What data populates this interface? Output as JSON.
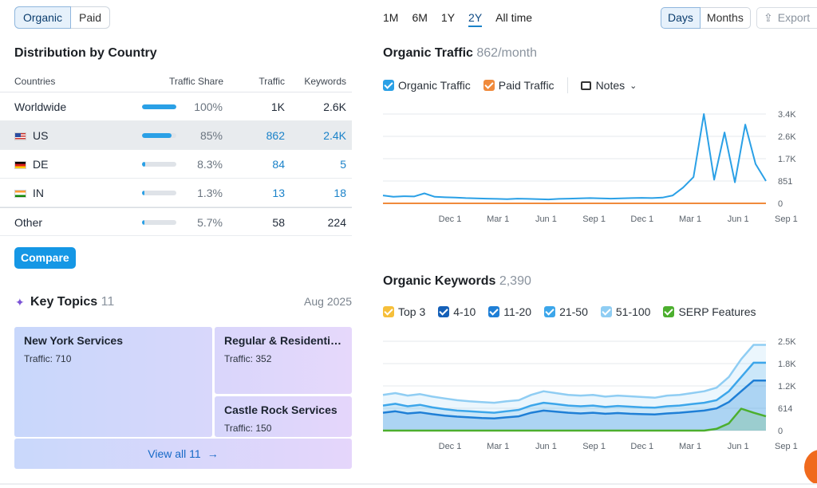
{
  "source_toggle": {
    "options": [
      "Organic",
      "Paid"
    ],
    "active": "Organic"
  },
  "distribution": {
    "title": "Distribution by Country",
    "headers": {
      "countries": "Countries",
      "share": "Traffic Share",
      "traffic": "Traffic",
      "keywords": "Keywords"
    },
    "rows": [
      {
        "name": "Worldwide",
        "share": "100%",
        "share_value": 1.0,
        "traffic": "1K",
        "keywords": "2.6K",
        "flag": "",
        "link": false
      },
      {
        "name": "US",
        "share": "85%",
        "share_value": 0.85,
        "traffic": "862",
        "keywords": "2.4K",
        "flag": "us",
        "link": true
      },
      {
        "name": "DE",
        "share": "8.3%",
        "share_value": 0.083,
        "traffic": "84",
        "keywords": "5",
        "flag": "de",
        "link": true
      },
      {
        "name": "IN",
        "share": "1.3%",
        "share_value": 0.013,
        "traffic": "13",
        "keywords": "18",
        "flag": "in",
        "link": true
      },
      {
        "name": "Other",
        "share": "5.7%",
        "share_value": 0.057,
        "traffic": "58",
        "keywords": "224",
        "flag": "",
        "link": false
      }
    ],
    "compare_label": "Compare"
  },
  "key_topics": {
    "title": "Key Topics",
    "count": "11",
    "date": "Aug 2025",
    "icon": "sparkle-icon",
    "tiles": [
      {
        "name": "New York Services",
        "traffic": "Traffic: 710"
      },
      {
        "name": "Regular & Residential Cleaning",
        "traffic": "Traffic: 352"
      },
      {
        "name": "Castle Rock Services",
        "traffic": "Traffic: 150"
      }
    ],
    "view_all": "View all 11"
  },
  "periods": {
    "options": [
      "1M",
      "6M",
      "1Y",
      "2Y",
      "All time"
    ],
    "active": "2Y"
  },
  "granularity": {
    "options": [
      "Days",
      "Months"
    ],
    "active": "Days"
  },
  "export_label": "Export",
  "organic_traffic": {
    "title": "Organic Traffic",
    "value": "862/month",
    "legend": [
      {
        "label": "Organic Traffic",
        "color": "#2aa0e6"
      },
      {
        "label": "Paid Traffic",
        "color": "#f08a3c"
      }
    ],
    "notes_label": "Notes"
  },
  "organic_keywords": {
    "title": "Organic Keywords",
    "value": "2,390",
    "legend": [
      {
        "label": "Top 3",
        "color": "#f6bf3a"
      },
      {
        "label": "4-10",
        "color": "#1560b8"
      },
      {
        "label": "11-20",
        "color": "#1f7fd6"
      },
      {
        "label": "21-50",
        "color": "#3ca6ea"
      },
      {
        "label": "51-100",
        "color": "#8fcdf3"
      },
      {
        "label": "SERP Features",
        "color": "#4caf2e"
      }
    ]
  },
  "chart_data": [
    {
      "type": "line",
      "title": "Organic Traffic",
      "x_ticks": [
        "Dec 1",
        "Mar 1",
        "Jun 1",
        "Sep 1",
        "Dec 1",
        "Mar 1",
        "Jun 1",
        "Sep 1"
      ],
      "y_ticks": [
        "3.4K",
        "2.6K",
        "1.7K",
        "851",
        "0"
      ],
      "ylim": [
        0,
        3400
      ],
      "series": [
        {
          "name": "Organic Traffic",
          "color": "#2aa0e6",
          "values": [
            300,
            250,
            270,
            260,
            380,
            250,
            230,
            220,
            200,
            190,
            180,
            170,
            160,
            180,
            170,
            160,
            150,
            170,
            180,
            190,
            200,
            190,
            180,
            190,
            200,
            210,
            200,
            220,
            300,
            600,
            1000,
            3400,
            900,
            2700,
            800,
            3000,
            1500,
            850
          ]
        },
        {
          "name": "Paid Traffic",
          "color": "#f08a3c",
          "values": [
            0,
            0,
            0,
            0,
            0,
            0,
            0,
            0,
            0,
            0,
            0,
            0,
            0,
            0,
            0,
            0,
            0,
            0,
            0,
            0,
            0,
            0,
            0,
            0,
            0,
            0,
            0,
            0,
            0,
            0,
            0,
            0,
            0,
            0,
            0,
            0,
            0,
            0
          ]
        }
      ]
    },
    {
      "type": "area",
      "title": "Organic Keywords",
      "x_ticks": [
        "Dec 1",
        "Mar 1",
        "Jun 1",
        "Sep 1",
        "Dec 1",
        "Mar 1",
        "Jun 1",
        "Sep 1"
      ],
      "y_ticks": [
        "2.5K",
        "1.8K",
        "1.2K",
        "614",
        "0"
      ],
      "ylim": [
        0,
        2500
      ],
      "series": [
        {
          "name": "51-100",
          "color": "#8fcdf3",
          "values": [
            1000,
            1050,
            980,
            1020,
            950,
            900,
            850,
            820,
            800,
            780,
            820,
            850,
            1000,
            1100,
            1050,
            1000,
            980,
            1000,
            950,
            980,
            960,
            940,
            920,
            980,
            1000,
            1050,
            1100,
            1200,
            1500,
            2000,
            2400,
            2400
          ]
        },
        {
          "name": "21-50",
          "color": "#3ca6ea",
          "values": [
            700,
            750,
            680,
            720,
            650,
            600,
            560,
            540,
            520,
            500,
            540,
            580,
            700,
            780,
            740,
            700,
            680,
            700,
            660,
            690,
            670,
            650,
            640,
            680,
            700,
            740,
            780,
            850,
            1100,
            1500,
            1900,
            1900
          ]
        },
        {
          "name": "11-20",
          "color": "#1f7fd6",
          "values": [
            500,
            540,
            480,
            510,
            460,
            420,
            390,
            370,
            350,
            340,
            370,
            400,
            500,
            560,
            530,
            500,
            480,
            500,
            470,
            490,
            470,
            460,
            450,
            480,
            500,
            530,
            560,
            620,
            800,
            1100,
            1400,
            1400
          ]
        },
        {
          "name": "SERP Features",
          "color": "#4caf2e",
          "values": [
            0,
            0,
            0,
            0,
            0,
            0,
            0,
            0,
            0,
            0,
            0,
            0,
            0,
            0,
            0,
            0,
            0,
            0,
            0,
            0,
            0,
            0,
            0,
            0,
            0,
            0,
            0,
            50,
            200,
            614,
            500,
            400
          ]
        }
      ]
    }
  ]
}
